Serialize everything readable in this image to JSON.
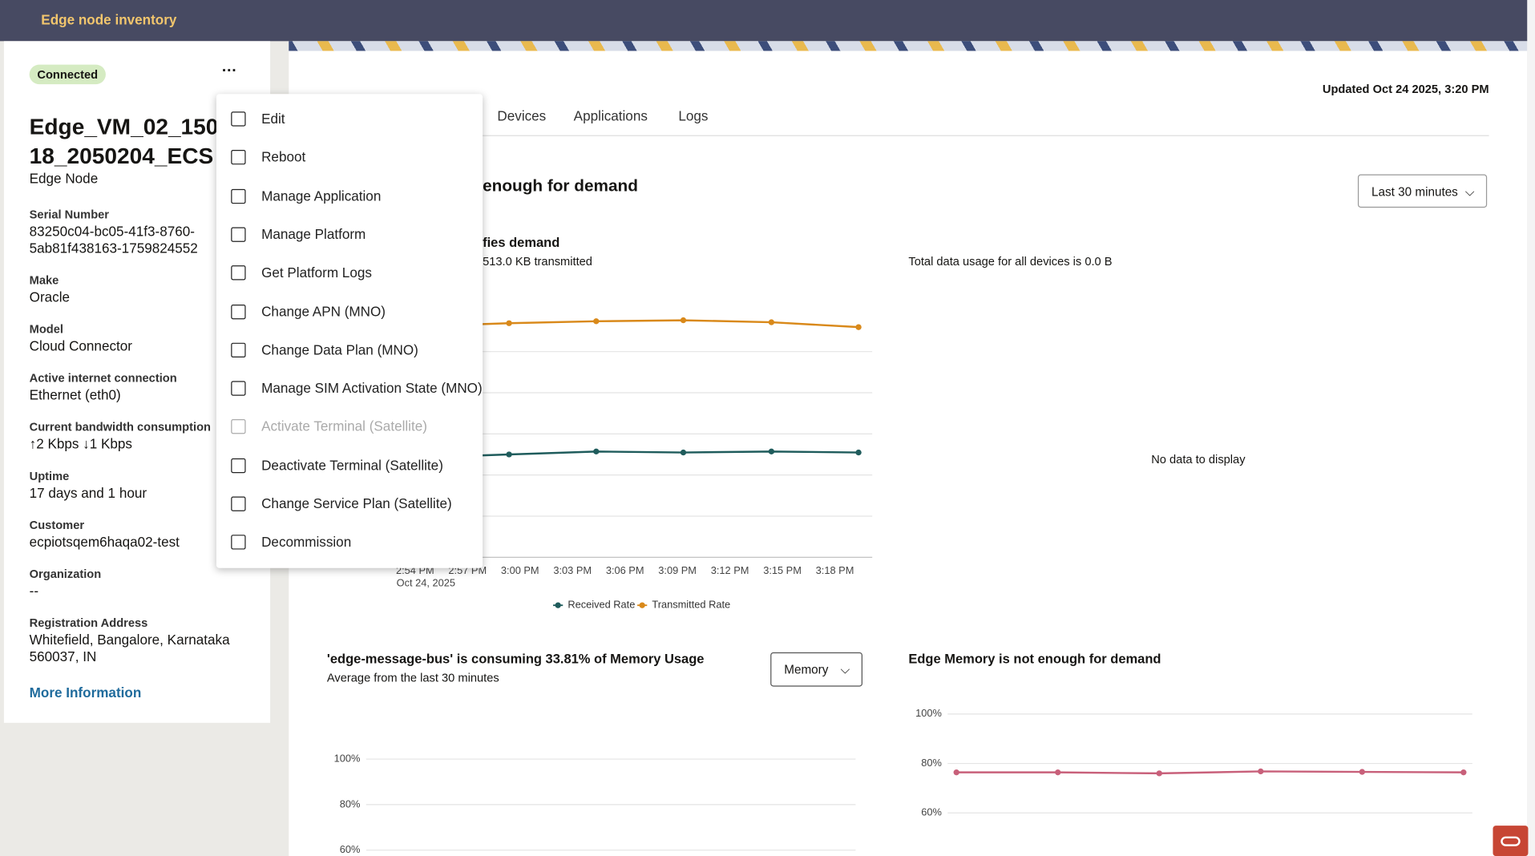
{
  "header": {
    "title": "Edge node inventory"
  },
  "node": {
    "status": "Connected",
    "name_lines": [
      "Edge_VM_02_150",
      "18_2050204_ECS"
    ],
    "kind": "Edge Node",
    "fields": [
      {
        "label": "Serial Number",
        "lines": [
          "83250c04-bc05-41f3-8760-",
          "5ab81f438163-1759824552"
        ]
      },
      {
        "label": "Make",
        "lines": [
          "Oracle"
        ]
      },
      {
        "label": "Model",
        "lines": [
          "Cloud Connector"
        ]
      },
      {
        "label": "Active internet connection",
        "lines": [
          "Ethernet (eth0)"
        ]
      },
      {
        "label": "Current bandwidth consumption",
        "lines": [
          "↑2 Kbps  ↓1 Kbps"
        ]
      },
      {
        "label": "Uptime",
        "lines": [
          "17 days and 1 hour"
        ]
      },
      {
        "label": "Customer",
        "lines": [
          "ecpiotsqem6haqa02-test"
        ]
      },
      {
        "label": "Organization",
        "lines": [
          "--"
        ]
      },
      {
        "label": "Registration Address",
        "lines": [
          "Whitefield, Bangalore, Karnataka",
          "560037, IN"
        ]
      }
    ],
    "more": "More Information"
  },
  "menu": {
    "items": [
      {
        "label": "Edit"
      },
      {
        "label": "Reboot"
      },
      {
        "label": "Manage Application"
      },
      {
        "label": "Manage Platform"
      },
      {
        "label": "Get Platform Logs"
      },
      {
        "label": "Change APN (MNO)"
      },
      {
        "label": "Change Data Plan (MNO)"
      },
      {
        "label": "Manage SIM Activation State (MNO)"
      },
      {
        "label": "Activate Terminal (Satellite)",
        "disabled": true
      },
      {
        "label": "Deactivate Terminal (Satellite)"
      },
      {
        "label": "Change Service Plan (Satellite)"
      },
      {
        "label": "Decommission"
      }
    ]
  },
  "tabs": [
    "Devices",
    "Applications",
    "Logs"
  ],
  "updated": "Updated Oct 24 2025, 3:20 PM",
  "network": {
    "title": "enough for demand",
    "subtitle": "fies demand",
    "caption": "513.0 KB transmitted",
    "range": "Last 30 minutes",
    "xticks": [
      "2:54 PM",
      "2:57 PM",
      "3:00 PM",
      "3:03 PM",
      "3:06 PM",
      "3:09 PM",
      "3:12 PM",
      "3:15 PM",
      "3:18 PM"
    ],
    "date": "Oct 24, 2025",
    "legend": [
      {
        "name": "Received Rate",
        "color": "#1f5c5c"
      },
      {
        "name": "Transmitted Rate",
        "color": "#d9891a"
      }
    ]
  },
  "devices": {
    "caption": "Total data usage for all devices is 0.0 B",
    "empty": "No data to display"
  },
  "memory_app": {
    "title": "'edge-message-bus' is consuming 33.81% of Memory Usage",
    "subtitle": "Average from the last 30 minutes",
    "selector": "Memory",
    "ylim": [
      60,
      100
    ],
    "yticks": [
      {
        "value": 100,
        "label": "100%"
      },
      {
        "value": 80,
        "label": "80%"
      },
      {
        "value": 60,
        "label": "60%"
      }
    ]
  },
  "memory_edge": {
    "title": "Edge Memory is not enough for demand",
    "ylim": [
      60,
      100
    ],
    "yticks": [
      {
        "value": 100,
        "label": "100%"
      },
      {
        "value": 80,
        "label": "80%"
      },
      {
        "value": 60,
        "label": "60%"
      }
    ],
    "values": [
      76.4,
      76.4,
      76.0,
      76.8,
      76.6,
      76.4
    ],
    "color": "#c8607a"
  }
}
